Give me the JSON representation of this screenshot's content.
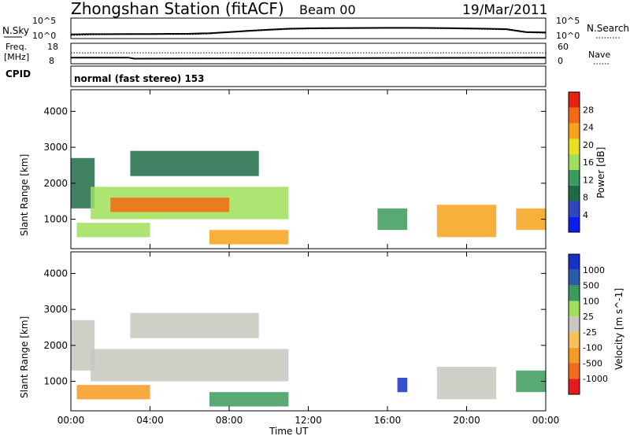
{
  "header": {
    "station": "Zhongshan Station (fitACF)",
    "beam": "Beam 00",
    "date": "19/Mar/2011",
    "cpid_label": "CPID",
    "cpid_text": "normal (fast stereo) 153"
  },
  "noise_panel": {
    "left_label": "N.Sky",
    "right_label": "N.Search",
    "left_ticks": [
      "10^5",
      "10^0"
    ],
    "right_ticks": [
      "10^5",
      "10^0"
    ]
  },
  "freq_panel": {
    "left_label_1": "Freq.",
    "left_label_2": "[MHz]",
    "right_label": "Nave",
    "left_ticks": [
      "18",
      "8"
    ],
    "right_ticks": [
      "60",
      "0"
    ]
  },
  "colors": {
    "power_scale": [
      "#0b1ef0",
      "#2e47c0",
      "#1f6a48",
      "#3c9a5c",
      "#9fe05a",
      "#e8e020",
      "#f7a21b",
      "#f36a10",
      "#e82010"
    ],
    "velocity_scale": [
      "#e41a1c",
      "#f26a1b",
      "#f79a20",
      "#f8c15a",
      "#c8c8c0",
      "#9fe05a",
      "#3c9a5c",
      "#2a5aa8",
      "#1431c8"
    ]
  },
  "chart_data": [
    {
      "type": "line",
      "title": "Zhongshan Station (fitACF)",
      "description_panel": "noise",
      "x": [
        0,
        1,
        2,
        3,
        4,
        5,
        6,
        7,
        8,
        9,
        10,
        11,
        12,
        13,
        14,
        15,
        16,
        17,
        18,
        19,
        20,
        21,
        22,
        23,
        24
      ],
      "series": [
        {
          "name": "N.Sky",
          "values": [
            10,
            12,
            12,
            13,
            13,
            14,
            15,
            20,
            40,
            80,
            150,
            250,
            320,
            350,
            380,
            400,
            420,
            420,
            400,
            350,
            300,
            250,
            200,
            40,
            30
          ]
        },
        {
          "name": "N.Search",
          "values": [
            6,
            8,
            9,
            10,
            10,
            10,
            10,
            14,
            30,
            60,
            110,
            180,
            230,
            260,
            290,
            300,
            320,
            320,
            300,
            260,
            220,
            180,
            140,
            30,
            20
          ]
        }
      ],
      "ylim": [
        1,
        100000
      ],
      "yscale": "log"
    },
    {
      "type": "line",
      "description_panel": "frequency",
      "x": [
        0,
        2.9,
        3.2,
        24
      ],
      "series": [
        {
          "name": "Freq.",
          "values": [
            11,
            11,
            10.5,
            11
          ]
        },
        {
          "name": "Nave",
          "values": [
            32,
            32,
            32,
            32
          ]
        }
      ],
      "ylim": [
        8,
        18
      ],
      "y2lim": [
        0,
        60
      ]
    },
    {
      "type": "heatmap",
      "ylabel": "Slant Range [km]",
      "xlabel": "Time UT",
      "colorbar_label": "Power [dB]",
      "colorbar_ticks": [
        "4",
        "8",
        "12",
        "16",
        "20",
        "24",
        "28"
      ],
      "y_ticks": [
        "1000",
        "2000",
        "3000",
        "4000"
      ],
      "x_ticks": [
        "00:00",
        "04:00",
        "08:00",
        "12:00",
        "16:00",
        "20:00",
        "00:00"
      ],
      "ylim": [
        180,
        4600
      ],
      "xlim": [
        0,
        24
      ],
      "regions": [
        {
          "t0": 0.0,
          "t1": 1.2,
          "r0": 1300,
          "r1": 2700,
          "level": 2
        },
        {
          "t0": 1.0,
          "t1": 11.0,
          "r0": 1000,
          "r1": 1900,
          "level": 4
        },
        {
          "t0": 2.0,
          "t1": 8.0,
          "r0": 1200,
          "r1": 1600,
          "level": 7
        },
        {
          "t0": 0.3,
          "t1": 4.0,
          "r0": 500,
          "r1": 900,
          "level": 4
        },
        {
          "t0": 7.0,
          "t1": 11.0,
          "r0": 300,
          "r1": 700,
          "level": 6
        },
        {
          "t0": 3.0,
          "t1": 9.5,
          "r0": 2200,
          "r1": 2900,
          "level": 2
        },
        {
          "t0": 18.5,
          "t1": 21.5,
          "r0": 500,
          "r1": 1400,
          "level": 6
        },
        {
          "t0": 22.5,
          "t1": 24.0,
          "r0": 700,
          "r1": 1300,
          "level": 6
        },
        {
          "t0": 15.5,
          "t1": 17.0,
          "r0": 700,
          "r1": 1300,
          "level": 3
        }
      ]
    },
    {
      "type": "heatmap",
      "ylabel": "Slant Range [km]",
      "xlabel": "Time UT",
      "colorbar_label": "Velocity [m s^-1]",
      "colorbar_ticks": [
        "1000",
        "500",
        "100",
        "25",
        "-25",
        "-100",
        "-500",
        "-1000"
      ],
      "y_ticks": [
        "1000",
        "2000",
        "3000",
        "4000"
      ],
      "x_ticks": [
        "00:00",
        "04:00",
        "08:00",
        "12:00",
        "16:00",
        "20:00",
        "00:00"
      ],
      "ylim": [
        180,
        4600
      ],
      "xlim": [
        0,
        24
      ],
      "regions": [
        {
          "t0": 0.0,
          "t1": 1.2,
          "r0": 1300,
          "r1": 2700,
          "level": 4
        },
        {
          "t0": 1.0,
          "t1": 11.0,
          "r0": 1000,
          "r1": 1900,
          "level": 4
        },
        {
          "t0": 0.3,
          "t1": 4.0,
          "r0": 500,
          "r1": 900,
          "level": 2
        },
        {
          "t0": 7.0,
          "t1": 11.0,
          "r0": 300,
          "r1": 700,
          "level": 6
        },
        {
          "t0": 3.0,
          "t1": 9.5,
          "r0": 2200,
          "r1": 2900,
          "level": 4
        },
        {
          "t0": 18.5,
          "t1": 21.5,
          "r0": 500,
          "r1": 1400,
          "level": 4
        },
        {
          "t0": 22.5,
          "t1": 24.0,
          "r0": 700,
          "r1": 1300,
          "level": 6
        },
        {
          "t0": 16.5,
          "t1": 17.0,
          "r0": 700,
          "r1": 1100,
          "level": 8
        }
      ]
    }
  ],
  "footer": {
    "x_axis_label": "Time UT"
  }
}
